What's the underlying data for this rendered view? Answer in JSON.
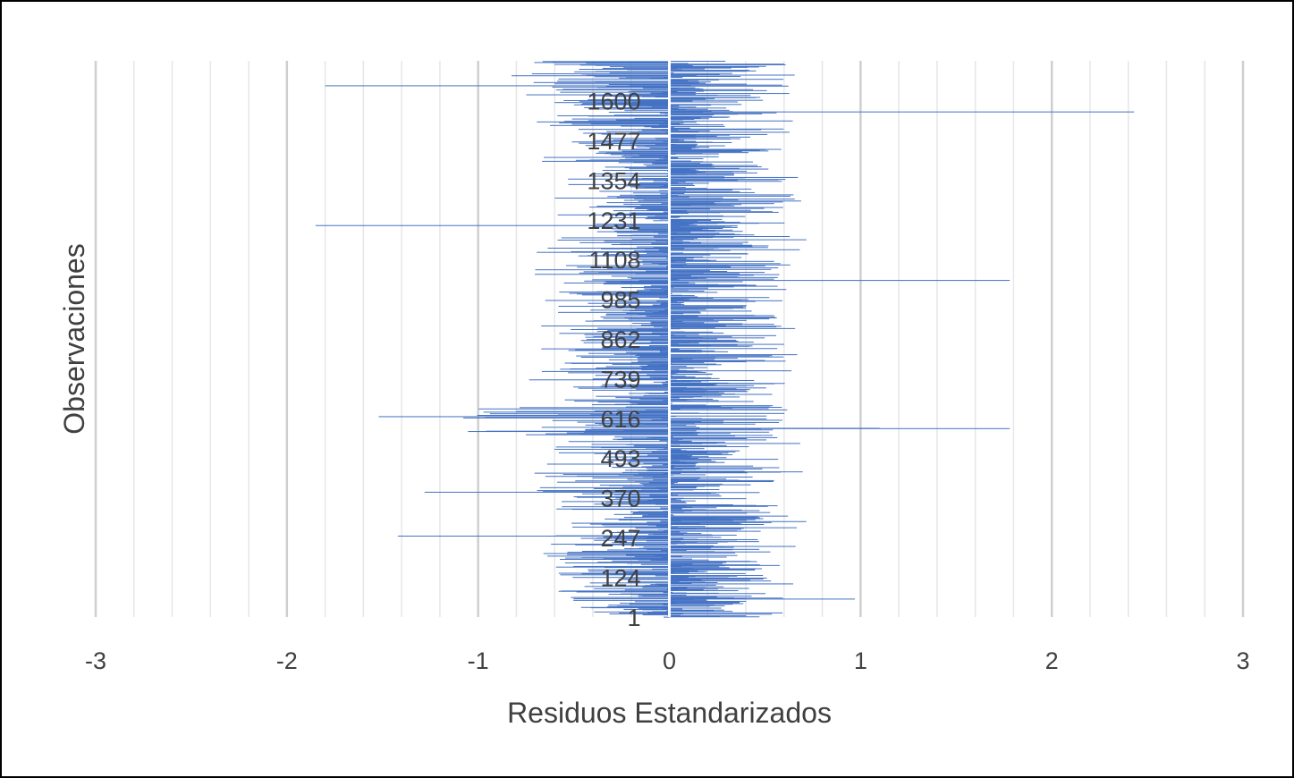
{
  "chart_data": {
    "type": "bar",
    "orientation": "horizontal",
    "title": "",
    "xlabel": "Residuos Estandarizados",
    "ylabel": "Observaciones",
    "xlim": [
      -3,
      3
    ],
    "x_ticks": [
      -3,
      -2,
      -1,
      0,
      1,
      2,
      3
    ],
    "n_observations": 1723,
    "category_tick_labels": [
      "1",
      "124",
      "247",
      "370",
      "493",
      "616",
      "739",
      "862",
      "985",
      "1108",
      "1231",
      "1354",
      "1477",
      "1600"
    ],
    "gridlines": "vertical, major and minor",
    "legend": "none",
    "bar_color": "#4472c4",
    "notable_values": [
      {
        "observation": 1647,
        "value": -1.8
      },
      {
        "observation": 1566,
        "value": 2.43
      },
      {
        "observation": 1214,
        "value": -1.85
      },
      {
        "observation": 1044,
        "value": 1.78
      },
      {
        "observation": 622,
        "value": -1.52
      },
      {
        "observation": 585,
        "value": 1.78
      },
      {
        "observation": 586,
        "value": 1.1
      },
      {
        "observation": 388,
        "value": -1.28
      },
      {
        "observation": 252,
        "value": -1.42
      },
      {
        "observation": 57,
        "value": 0.97
      }
    ]
  }
}
